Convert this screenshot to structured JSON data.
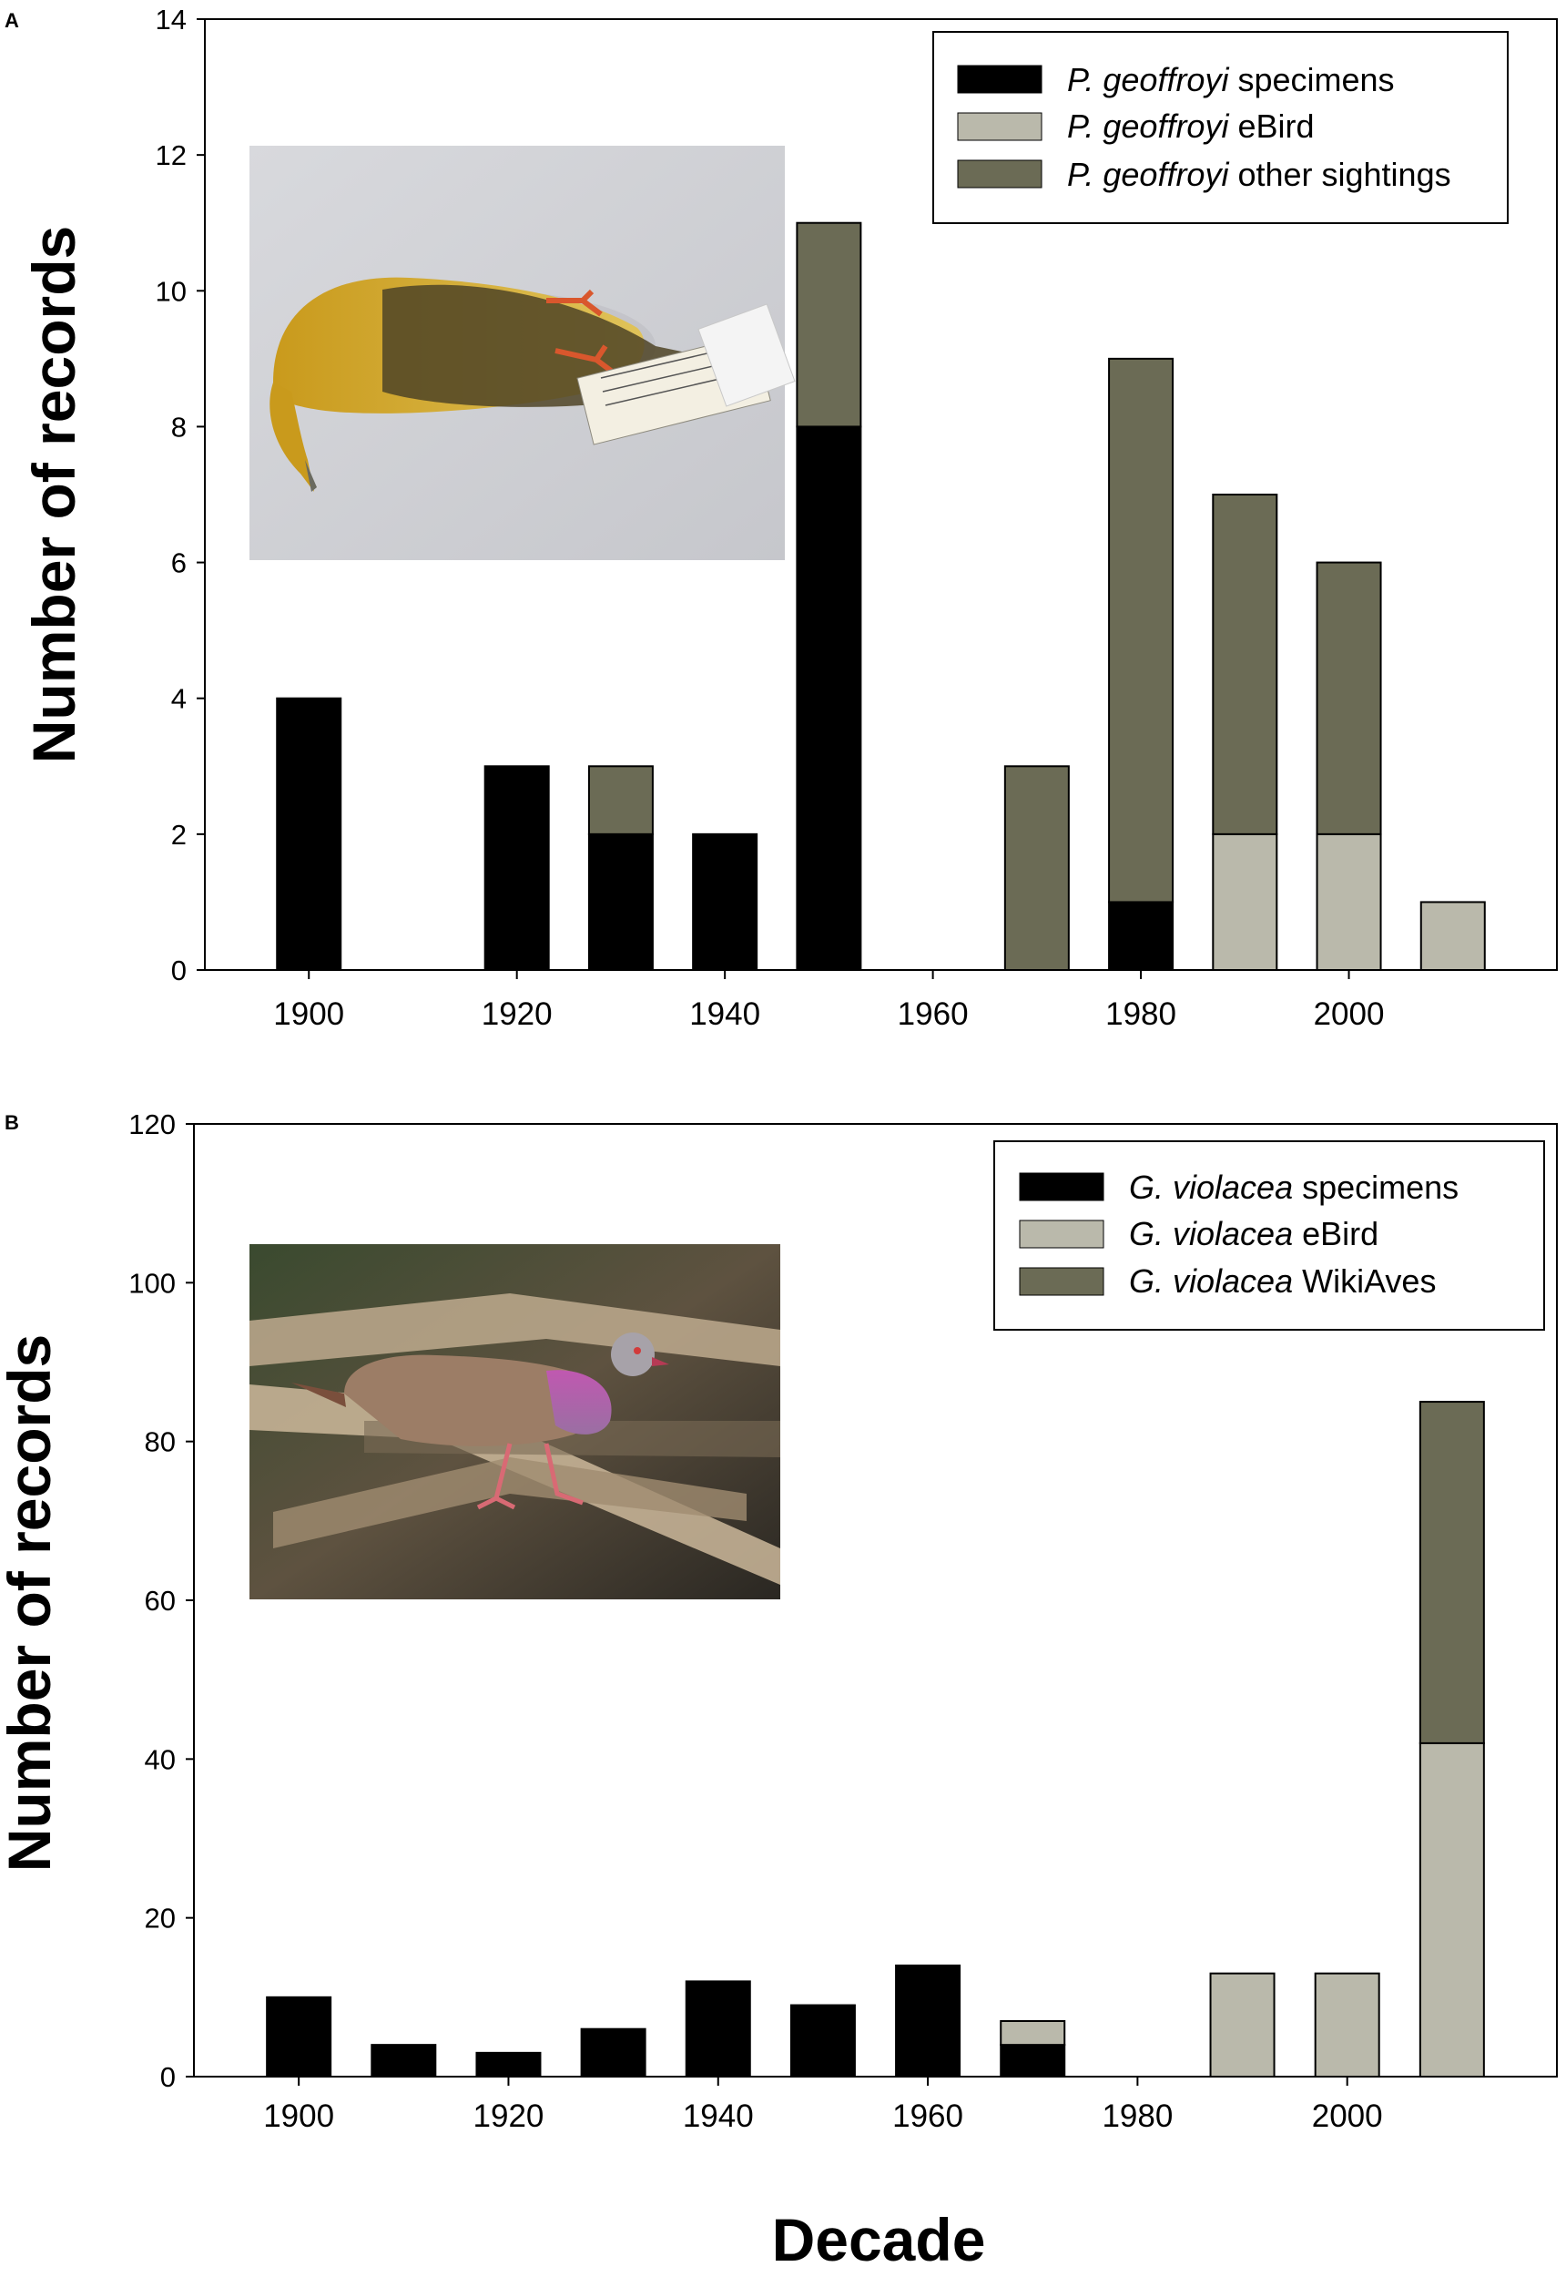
{
  "figure": {
    "xlabel": "Decade",
    "colors": {
      "specimens": "#000000",
      "ebird": "#bab9ab",
      "other": "#6b6b55"
    }
  },
  "chart_data": [
    {
      "panel": "A",
      "type": "bar",
      "stacked": true,
      "ylabel": "Number of records",
      "xlabel": "",
      "ylim": [
        0,
        14
      ],
      "yticks": [
        0,
        2,
        4,
        6,
        8,
        10,
        12,
        14
      ],
      "xlim": [
        1890,
        2020
      ],
      "xticks": [
        1900,
        1920,
        1940,
        1960,
        1980,
        2000
      ],
      "x": [
        1900,
        1910,
        1920,
        1930,
        1940,
        1950,
        1960,
        1970,
        1980,
        1990,
        2000,
        2010
      ],
      "series": [
        {
          "key": "specimens",
          "name_italic": "P. geoffroyi",
          "name_rest": " specimens",
          "color": "#000000",
          "values": [
            4,
            0,
            3,
            2,
            2,
            8,
            0,
            0,
            1,
            0,
            0,
            0
          ]
        },
        {
          "key": "ebird",
          "name_italic": "P. geoffroyi",
          "name_rest": " eBird",
          "color": "#bab9ab",
          "values": [
            0,
            0,
            0,
            0,
            0,
            0,
            0,
            0,
            0,
            2,
            2,
            1
          ]
        },
        {
          "key": "other",
          "name_italic": "P. geoffroyi",
          "name_rest": " other sightings",
          "color": "#6b6b55",
          "values": [
            0,
            0,
            0,
            1,
            0,
            3,
            0,
            3,
            8,
            5,
            4,
            0
          ]
        }
      ],
      "legend_position": "top-right",
      "inset_photo": "yellow-pigeon-specimen-photo",
      "grid": false
    },
    {
      "panel": "B",
      "type": "bar",
      "stacked": true,
      "ylabel": "Number of records",
      "xlabel": "Decade",
      "ylim": [
        0,
        120
      ],
      "yticks": [
        0,
        20,
        40,
        60,
        80,
        100,
        120
      ],
      "xlim": [
        1890,
        2020
      ],
      "xticks": [
        1900,
        1920,
        1940,
        1960,
        1980,
        2000
      ],
      "x": [
        1900,
        1910,
        1920,
        1930,
        1940,
        1950,
        1960,
        1970,
        1980,
        1990,
        2000,
        2010
      ],
      "series": [
        {
          "key": "specimens",
          "name_italic": "G. violacea",
          "name_rest": " specimens",
          "color": "#000000",
          "values": [
            10,
            4,
            3,
            6,
            12,
            9,
            14,
            4,
            0,
            0,
            0,
            0
          ]
        },
        {
          "key": "ebird",
          "name_italic": "G. violacea",
          "name_rest": " eBird",
          "color": "#bab9ab",
          "values": [
            0,
            0,
            0,
            0,
            0,
            0,
            0,
            3,
            0,
            13,
            13,
            42
          ]
        },
        {
          "key": "wikiaves",
          "name_italic": "G. violacea",
          "name_rest": " WikiAves",
          "color": "#6b6b55",
          "values": [
            0,
            0,
            0,
            0,
            0,
            0,
            0,
            0,
            0,
            0,
            0,
            43
          ]
        }
      ],
      "legend_position": "top-right",
      "inset_photo": "violaceous-quail-dove-photo",
      "grid": false
    }
  ]
}
